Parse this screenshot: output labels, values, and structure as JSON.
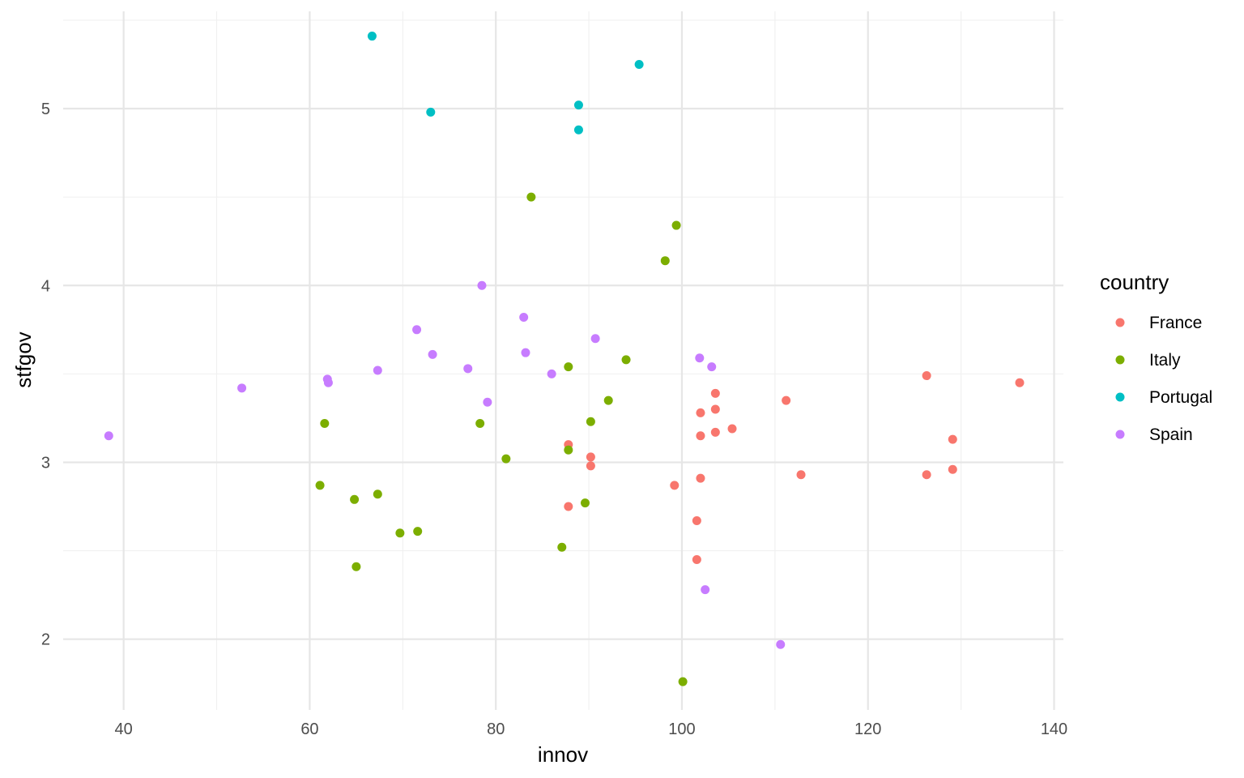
{
  "chart_data": {
    "type": "scatter",
    "xlabel": "innov",
    "ylabel": "stfgov",
    "xlim": [
      33.5,
      141
    ],
    "ylim": [
      1.6,
      5.55
    ],
    "x_major_ticks": [
      40,
      60,
      80,
      100,
      120,
      140
    ],
    "x_minor_ticks": [
      50,
      70,
      90,
      110,
      130
    ],
    "y_major_ticks": [
      2,
      3,
      4,
      5
    ],
    "y_minor_ticks": [
      2.5,
      3.5,
      4.5,
      5.5
    ],
    "grid": true,
    "legend": {
      "title": "country",
      "position": "right"
    },
    "series": [
      {
        "name": "France",
        "color": "#F8766D",
        "points": [
          [
            87.8,
            3.1
          ],
          [
            87.8,
            2.75
          ],
          [
            90.2,
            3.03
          ],
          [
            90.2,
            2.98
          ],
          [
            99.2,
            2.87
          ],
          [
            101.6,
            2.67
          ],
          [
            101.6,
            2.45
          ],
          [
            102.0,
            3.28
          ],
          [
            102.0,
            3.15
          ],
          [
            102.0,
            2.91
          ],
          [
            103.6,
            3.39
          ],
          [
            103.6,
            3.3
          ],
          [
            103.6,
            3.17
          ],
          [
            105.4,
            3.19
          ],
          [
            111.2,
            3.35
          ],
          [
            112.8,
            2.93
          ],
          [
            126.3,
            3.49
          ],
          [
            126.3,
            2.93
          ],
          [
            129.1,
            3.13
          ],
          [
            129.1,
            2.96
          ],
          [
            136.3,
            3.45
          ]
        ]
      },
      {
        "name": "Italy",
        "color": "#7CAE00",
        "points": [
          [
            61.1,
            2.87
          ],
          [
            61.6,
            3.22
          ],
          [
            64.8,
            2.79
          ],
          [
            65.0,
            2.41
          ],
          [
            67.3,
            2.82
          ],
          [
            69.7,
            2.6
          ],
          [
            71.6,
            2.61
          ],
          [
            78.3,
            3.22
          ],
          [
            81.1,
            3.02
          ],
          [
            83.8,
            4.5
          ],
          [
            87.1,
            2.52
          ],
          [
            87.8,
            3.54
          ],
          [
            87.8,
            3.07
          ],
          [
            89.6,
            2.77
          ],
          [
            90.2,
            3.23
          ],
          [
            92.1,
            3.35
          ],
          [
            94.0,
            3.58
          ],
          [
            98.2,
            4.14
          ],
          [
            99.4,
            4.34
          ],
          [
            100.1,
            1.76
          ]
        ]
      },
      {
        "name": "Portugal",
        "color": "#00BFC4",
        "points": [
          [
            66.7,
            5.41
          ],
          [
            73.0,
            4.98
          ],
          [
            88.9,
            5.02
          ],
          [
            88.9,
            4.88
          ],
          [
            95.4,
            5.25
          ]
        ]
      },
      {
        "name": "Spain",
        "color": "#C77CFF",
        "points": [
          [
            38.4,
            3.15
          ],
          [
            52.7,
            3.42
          ],
          [
            61.9,
            3.47
          ],
          [
            62.0,
            3.45
          ],
          [
            67.3,
            3.52
          ],
          [
            71.5,
            3.75
          ],
          [
            73.2,
            3.61
          ],
          [
            77.0,
            3.53
          ],
          [
            78.5,
            4.0
          ],
          [
            79.1,
            3.34
          ],
          [
            83.0,
            3.82
          ],
          [
            83.2,
            3.62
          ],
          [
            86.0,
            3.5
          ],
          [
            90.7,
            3.7
          ],
          [
            101.9,
            3.59
          ],
          [
            102.5,
            2.28
          ],
          [
            103.2,
            3.54
          ],
          [
            110.6,
            1.97
          ]
        ]
      }
    ]
  }
}
